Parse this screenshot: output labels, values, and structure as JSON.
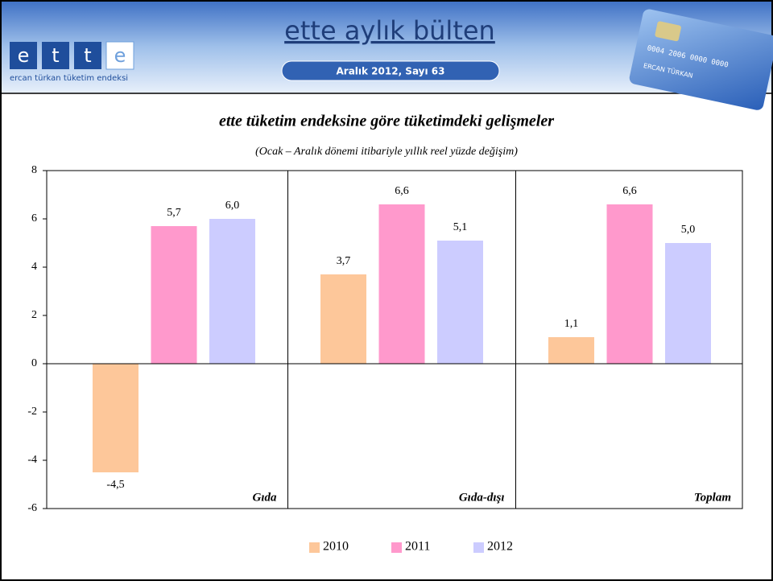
{
  "header": {
    "logo_letters": [
      "e",
      "t",
      "t",
      "e"
    ],
    "logo_caption": "ercan türkan tüketim endeksi",
    "title": "ette aylık bülten",
    "issue": "Aralık 2012, Sayı  63",
    "card_number": "0004 2006 0000 0000",
    "card_name": "ERCAN TÜRKAN"
  },
  "chart_data": {
    "type": "bar",
    "title": "ette tüketim endeksine göre tüketimdeki gelişmeler",
    "subtitle": "(Ocak – Aralık  dönemi itibariyle yıllık reel yüzde değişim)",
    "categories": [
      "Gıda",
      "Gıda-dışı",
      "Toplam"
    ],
    "series": [
      {
        "name": "2010",
        "color": "#fdc79a",
        "values": [
          -4.5,
          3.7,
          1.1
        ],
        "value_labels": [
          "-4,5",
          "3,7",
          "1,1"
        ]
      },
      {
        "name": "2011",
        "color": "#ff99cc",
        "values": [
          5.7,
          6.6,
          6.6
        ],
        "value_labels": [
          "5,7",
          "6,6",
          "6,6"
        ]
      },
      {
        "name": "2012",
        "color": "#ccccff",
        "values": [
          6.0,
          5.1,
          5.0
        ],
        "value_labels": [
          "6,0",
          "5,1",
          "5,0"
        ]
      }
    ],
    "ylim": [
      -6,
      8
    ],
    "yticks": [
      -6,
      -4,
      -2,
      0,
      2,
      4,
      6,
      8
    ],
    "legend": "bottom"
  }
}
